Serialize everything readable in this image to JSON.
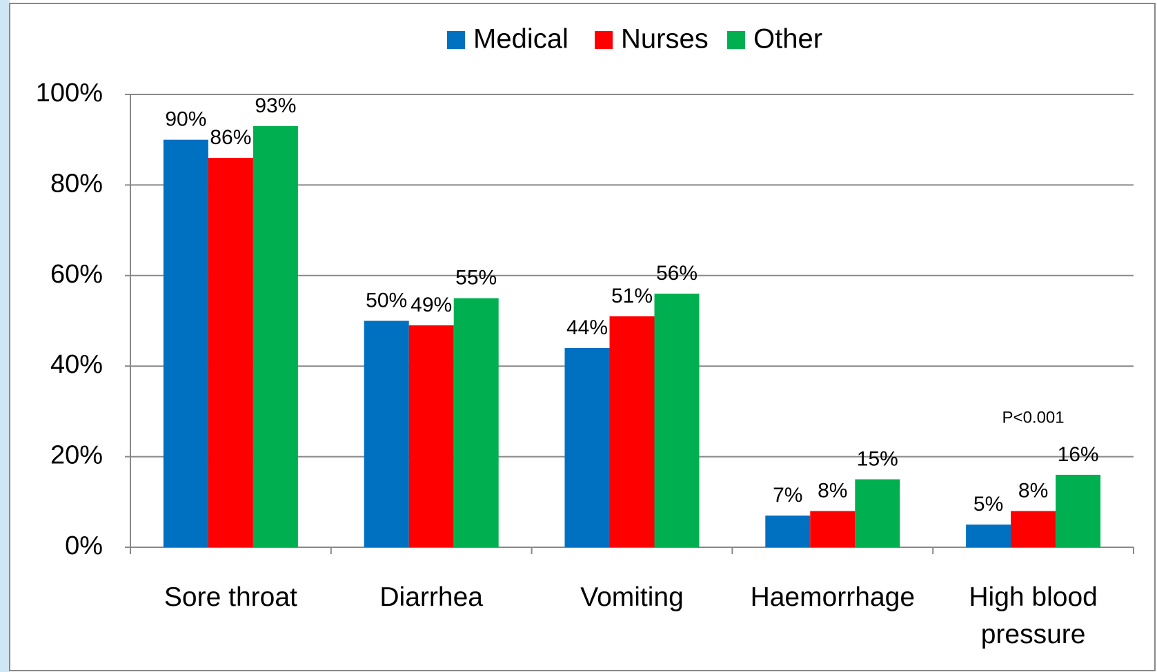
{
  "chart_data": {
    "type": "bar",
    "categories": [
      "Sore throat",
      "Diarrhea",
      "Vomiting",
      "Haemorrhage",
      "High blood pressure"
    ],
    "series": [
      {
        "name": "Medical",
        "color": "#0070c0",
        "values": [
          90,
          50,
          44,
          7,
          5
        ],
        "value_labels": [
          "90%",
          "50%",
          "44%",
          "7%",
          "5%"
        ]
      },
      {
        "name": "Nurses",
        "color": "#ff0000",
        "values": [
          86,
          49,
          51,
          8,
          8
        ],
        "value_labels": [
          "86%",
          "49%",
          "51%",
          "8%",
          "8%"
        ]
      },
      {
        "name": "Other",
        "color": "#00b050",
        "values": [
          93,
          55,
          56,
          15,
          16
        ],
        "value_labels": [
          "93%",
          "55%",
          "56%",
          "15%",
          "16%"
        ]
      }
    ],
    "ylim": [
      0,
      100
    ],
    "yticks": [
      {
        "value": 0,
        "label": "0%"
      },
      {
        "value": 20,
        "label": "20%"
      },
      {
        "value": 40,
        "label": "40%"
      },
      {
        "value": 60,
        "label": "60%"
      },
      {
        "value": 80,
        "label": "80%"
      },
      {
        "value": 100,
        "label": "100%"
      }
    ],
    "grid": true,
    "legend": "top",
    "annotation": "P<0.001"
  }
}
